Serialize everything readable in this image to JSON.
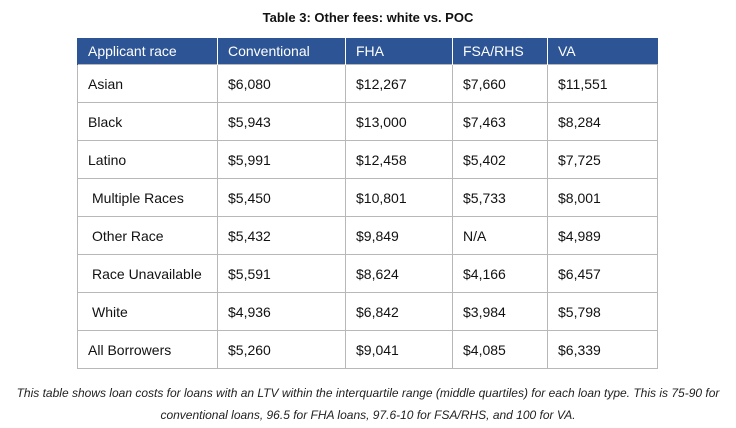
{
  "title": "Table 3: Other fees: white vs. POC",
  "table": {
    "headers": [
      "Applicant race",
      "Conventional",
      "FHA",
      "FSA/RHS",
      "VA"
    ],
    "rows": [
      [
        "Asian",
        "$6,080",
        "$12,267",
        "$7,660",
        "$11,551"
      ],
      [
        "Black",
        "$5,943",
        "$13,000",
        "$7,463",
        "$8,284"
      ],
      [
        "Latino",
        "$5,991",
        "$12,458",
        "$5,402",
        "$7,725"
      ],
      [
        "Multiple Races",
        "$5,450",
        "$10,801",
        "$5,733",
        "$8,001"
      ],
      [
        "Other Race",
        "$5,432",
        "$9,849",
        "N/A",
        "$4,989"
      ],
      [
        "Race Unavailable",
        "$5,591",
        "$8,624",
        "$4,166",
        "$6,457"
      ],
      [
        "White",
        "$4,936",
        "$6,842",
        "$3,984",
        "$5,798"
      ],
      [
        "All Borrowers",
        "$5,260",
        "$9,041",
        "$4,085",
        "$6,339"
      ]
    ]
  },
  "caption": {
    "line1": "This table shows loan costs for loans with an LTV within the interquartile range (middle quartiles) for each loan type. This is 75-90 for",
    "line2": "conventional loans, 96.5 for FHA loans, 97.6-10 for FSA/RHS, and 100 for VA."
  }
}
